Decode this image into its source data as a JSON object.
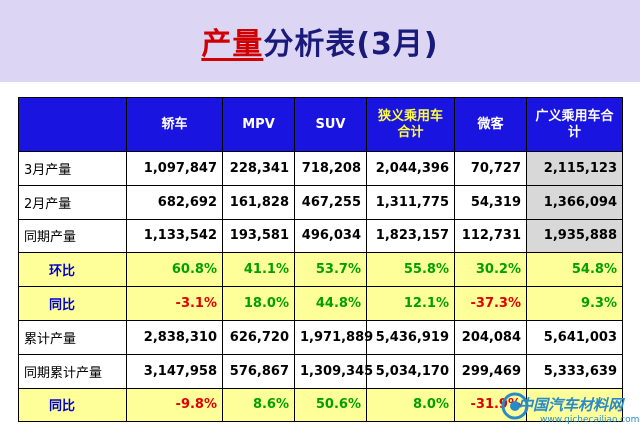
{
  "title": {
    "highlight": "产量",
    "rest": "分析表(3月)"
  },
  "header": [
    "",
    "轿车",
    "MPV",
    "SUV",
    "狭义乘用车合计",
    "微客",
    "广义乘用车合计"
  ],
  "rows": [
    {
      "label": "3月产量",
      "values": [
        "1,097,847",
        "228,341",
        "718,208",
        "2,044,396",
        "70,727",
        "2,115,123"
      ]
    },
    {
      "label": "2月产量",
      "values": [
        "682,692",
        "161,828",
        "467,255",
        "1,311,775",
        "54,319",
        "1,366,094"
      ]
    },
    {
      "label": "同期产量",
      "values": [
        "1,133,542",
        "193,581",
        "496,034",
        "1,823,157",
        "112,731",
        "1,935,888"
      ]
    },
    {
      "label": "环比",
      "values": [
        "60.8%",
        "41.1%",
        "53.7%",
        "55.8%",
        "30.2%",
        "54.8%"
      ]
    },
    {
      "label": "同比",
      "values": [
        "-3.1%",
        "18.0%",
        "44.8%",
        "12.1%",
        "-37.3%",
        "9.3%"
      ]
    },
    {
      "label": "累计产量",
      "values": [
        "2,838,310",
        "626,720",
        "1,971,889",
        "5,436,919",
        "204,084",
        "5,641,003"
      ]
    },
    {
      "label": "同期累计产量",
      "values": [
        "3,147,958",
        "576,867",
        "1,309,345",
        "5,034,170",
        "299,469",
        "5,333,639"
      ]
    },
    {
      "label": "同比",
      "values": [
        "-9.8%",
        "8.6%",
        "50.6%",
        "8.0%",
        "-31.9%",
        ""
      ]
    }
  ],
  "watermark": {
    "text": "中国汽车材料网",
    "url": "www.qichecailiao.com"
  }
}
